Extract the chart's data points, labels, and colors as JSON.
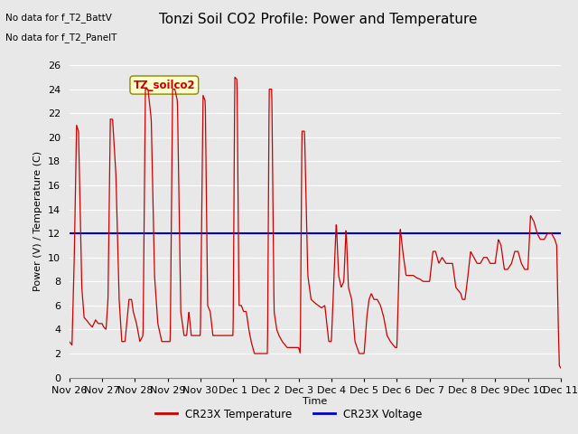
{
  "title": "Tonzi Soil CO2 Profile: Power and Temperature",
  "ylabel": "Power (V) / Temperature (C)",
  "xlabel": "Time",
  "ylim": [
    0,
    26
  ],
  "yticks": [
    0,
    2,
    4,
    6,
    8,
    10,
    12,
    14,
    16,
    18,
    20,
    22,
    24,
    26
  ],
  "bg_color": "#e8e8e8",
  "no_data_text1": "No data for f_T2_BattV",
  "no_data_text2": "No data for f_T2_PanelT",
  "legend_label_box": "TZ_soilco2",
  "legend_temp": "CR23X Temperature",
  "legend_volt": "CR23X Voltage",
  "voltage_value": 12.0,
  "x_tick_labels": [
    "Nov 26",
    "Nov 27",
    "Nov 28",
    "Nov 29",
    "Nov 30",
    "Dec 1",
    "Dec 2",
    "Dec 3",
    "Dec 4",
    "Dec 5",
    "Dec 6",
    "Dec 7",
    "Dec 8",
    "Dec 9",
    "Dec 10",
    "Dec 11"
  ],
  "x_tick_positions": [
    0,
    1,
    2,
    3,
    4,
    5,
    6,
    7,
    8,
    9,
    10,
    11,
    12,
    13,
    14,
    15
  ],
  "red_color": "#cc0000",
  "blue_color": "#0000cc",
  "grid_color": "#ffffff",
  "title_fontsize": 11,
  "axis_fontsize": 8,
  "tick_fontsize": 8,
  "control_points": [
    [
      0.0,
      3.0
    ],
    [
      0.08,
      2.7
    ],
    [
      0.15,
      10.0
    ],
    [
      0.22,
      21.0
    ],
    [
      0.28,
      20.5
    ],
    [
      0.38,
      7.5
    ],
    [
      0.45,
      5.0
    ],
    [
      0.52,
      4.8
    ],
    [
      0.6,
      4.5
    ],
    [
      0.7,
      4.2
    ],
    [
      0.8,
      4.8
    ],
    [
      0.88,
      4.5
    ],
    [
      0.95,
      4.5
    ],
    [
      1.0,
      4.5
    ],
    [
      1.05,
      4.2
    ],
    [
      1.12,
      4.0
    ],
    [
      1.18,
      6.5
    ],
    [
      1.25,
      21.5
    ],
    [
      1.32,
      21.5
    ],
    [
      1.42,
      17.0
    ],
    [
      1.52,
      6.5
    ],
    [
      1.6,
      3.0
    ],
    [
      1.7,
      3.0
    ],
    [
      1.82,
      6.5
    ],
    [
      1.9,
      6.5
    ],
    [
      1.95,
      5.5
    ],
    [
      2.0,
      5.0
    ],
    [
      2.05,
      4.5
    ],
    [
      2.15,
      3.0
    ],
    [
      2.25,
      3.5
    ],
    [
      2.32,
      24.0
    ],
    [
      2.4,
      24.0
    ],
    [
      2.5,
      21.5
    ],
    [
      2.6,
      8.5
    ],
    [
      2.7,
      4.5
    ],
    [
      2.82,
      3.0
    ],
    [
      2.95,
      3.0
    ],
    [
      3.0,
      3.0
    ],
    [
      3.08,
      3.0
    ],
    [
      3.15,
      24.0
    ],
    [
      3.22,
      24.0
    ],
    [
      3.3,
      23.0
    ],
    [
      3.4,
      5.5
    ],
    [
      3.5,
      3.5
    ],
    [
      3.58,
      3.5
    ],
    [
      3.65,
      5.5
    ],
    [
      3.72,
      3.5
    ],
    [
      3.95,
      3.5
    ],
    [
      4.0,
      3.5
    ],
    [
      4.08,
      23.5
    ],
    [
      4.15,
      23.0
    ],
    [
      4.22,
      6.0
    ],
    [
      4.3,
      5.5
    ],
    [
      4.38,
      3.5
    ],
    [
      4.5,
      3.5
    ],
    [
      4.62,
      3.5
    ],
    [
      4.75,
      3.5
    ],
    [
      4.9,
      3.5
    ],
    [
      5.0,
      3.5
    ],
    [
      5.05,
      25.0
    ],
    [
      5.12,
      24.8
    ],
    [
      5.18,
      6.0
    ],
    [
      5.25,
      6.0
    ],
    [
      5.32,
      5.5
    ],
    [
      5.4,
      5.5
    ],
    [
      5.48,
      4.0
    ],
    [
      5.55,
      3.0
    ],
    [
      5.65,
      2.0
    ],
    [
      5.8,
      2.0
    ],
    [
      5.95,
      2.0
    ],
    [
      6.0,
      2.0
    ],
    [
      6.05,
      2.0
    ],
    [
      6.1,
      24.0
    ],
    [
      6.18,
      24.0
    ],
    [
      6.25,
      5.5
    ],
    [
      6.33,
      4.0
    ],
    [
      6.4,
      3.5
    ],
    [
      6.5,
      3.0
    ],
    [
      6.65,
      2.5
    ],
    [
      6.8,
      2.5
    ],
    [
      6.95,
      2.5
    ],
    [
      7.0,
      2.5
    ],
    [
      7.05,
      2.0
    ],
    [
      7.1,
      20.5
    ],
    [
      7.18,
      20.5
    ],
    [
      7.28,
      8.5
    ],
    [
      7.38,
      6.5
    ],
    [
      7.5,
      6.2
    ],
    [
      7.6,
      6.0
    ],
    [
      7.7,
      5.8
    ],
    [
      7.8,
      6.0
    ],
    [
      7.92,
      3.0
    ],
    [
      8.0,
      3.0
    ],
    [
      8.08,
      8.5
    ],
    [
      8.15,
      13.0
    ],
    [
      8.22,
      8.5
    ],
    [
      8.3,
      7.5
    ],
    [
      8.38,
      8.0
    ],
    [
      8.45,
      12.5
    ],
    [
      8.52,
      7.5
    ],
    [
      8.62,
      6.5
    ],
    [
      8.72,
      3.0
    ],
    [
      8.85,
      2.0
    ],
    [
      8.95,
      2.0
    ],
    [
      9.0,
      2.0
    ],
    [
      9.08,
      5.0
    ],
    [
      9.15,
      6.5
    ],
    [
      9.22,
      7.0
    ],
    [
      9.3,
      6.5
    ],
    [
      9.4,
      6.5
    ],
    [
      9.5,
      6.0
    ],
    [
      9.6,
      5.0
    ],
    [
      9.7,
      3.5
    ],
    [
      9.8,
      3.0
    ],
    [
      9.95,
      2.5
    ],
    [
      10.0,
      2.5
    ],
    [
      10.1,
      12.5
    ],
    [
      10.18,
      10.5
    ],
    [
      10.28,
      8.5
    ],
    [
      10.4,
      8.5
    ],
    [
      10.5,
      8.5
    ],
    [
      10.6,
      8.3
    ],
    [
      10.7,
      8.2
    ],
    [
      10.8,
      8.0
    ],
    [
      10.95,
      8.0
    ],
    [
      11.0,
      8.0
    ],
    [
      11.1,
      10.5
    ],
    [
      11.18,
      10.5
    ],
    [
      11.28,
      9.5
    ],
    [
      11.38,
      10.0
    ],
    [
      11.5,
      9.5
    ],
    [
      11.6,
      9.5
    ],
    [
      11.7,
      9.5
    ],
    [
      11.8,
      7.5
    ],
    [
      11.95,
      7.0
    ],
    [
      12.0,
      6.5
    ],
    [
      12.08,
      6.5
    ],
    [
      12.15,
      8.0
    ],
    [
      12.25,
      10.5
    ],
    [
      12.35,
      10.0
    ],
    [
      12.45,
      9.5
    ],
    [
      12.55,
      9.5
    ],
    [
      12.65,
      10.0
    ],
    [
      12.75,
      10.0
    ],
    [
      12.85,
      9.5
    ],
    [
      12.95,
      9.5
    ],
    [
      13.0,
      9.5
    ],
    [
      13.1,
      11.5
    ],
    [
      13.18,
      11.0
    ],
    [
      13.28,
      9.0
    ],
    [
      13.38,
      9.0
    ],
    [
      13.5,
      9.5
    ],
    [
      13.6,
      10.5
    ],
    [
      13.7,
      10.5
    ],
    [
      13.8,
      9.5
    ],
    [
      13.9,
      9.0
    ],
    [
      13.97,
      9.0
    ],
    [
      14.0,
      9.0
    ],
    [
      14.08,
      13.5
    ],
    [
      14.18,
      13.0
    ],
    [
      14.28,
      12.0
    ],
    [
      14.38,
      11.5
    ],
    [
      14.5,
      11.5
    ],
    [
      14.6,
      12.0
    ],
    [
      14.72,
      12.0
    ],
    [
      14.82,
      11.5
    ],
    [
      14.88,
      11.0
    ],
    [
      14.92,
      5.0
    ],
    [
      14.96,
      1.0
    ],
    [
      15.0,
      0.8
    ]
  ]
}
